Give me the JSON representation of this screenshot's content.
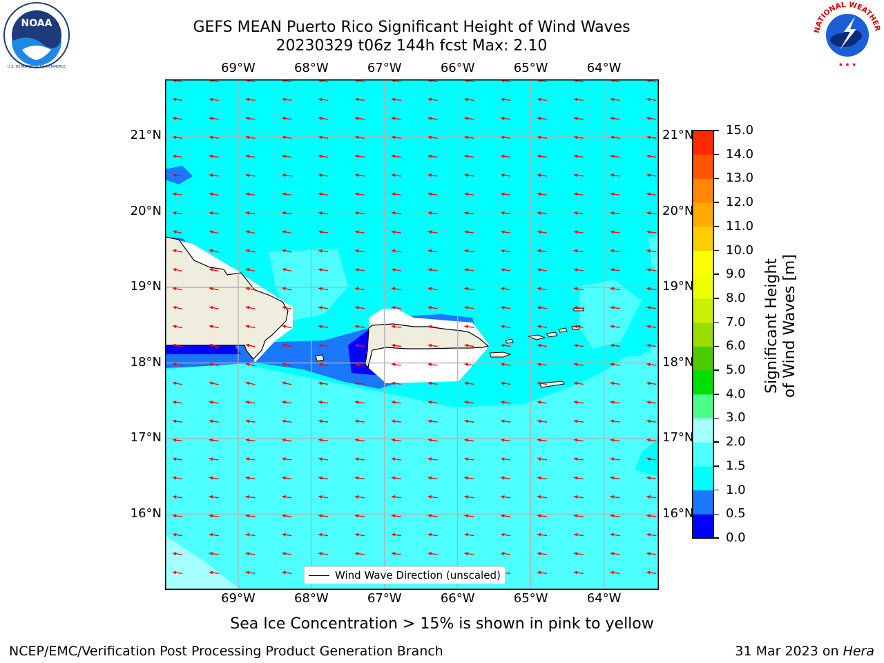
{
  "title_line1": "GEFS MEAN Puerto Rico Significant Height of Wind Waves",
  "title_line2": "20230329 t06z 144h fcst   Max: 2.10",
  "map": {
    "lon_ticks": [
      "69°W",
      "68°W",
      "67°W",
      "66°W",
      "65°W",
      "64°W"
    ],
    "lat_ticks": [
      "21°N",
      "20°N",
      "19°N",
      "18°N",
      "17°N",
      "16°N"
    ],
    "lon_values": [
      -69,
      -68,
      -67,
      -66,
      -65,
      -64
    ],
    "lat_values": [
      21,
      20,
      19,
      18,
      17,
      16
    ],
    "extent": {
      "lon_min": -70.0,
      "lon_max": -63.25,
      "lat_min": 15.0,
      "lat_max": 21.75
    },
    "arrow_color": "#ff0000",
    "legend_label": "Wind Wave Direction (unscaled)",
    "land_color": "#efedde",
    "islands": [
      "Hispaniola (east)",
      "Puerto Rico",
      "Virgin Islands",
      "St. Croix"
    ]
  },
  "colorbar": {
    "label": "Significant Height of Wind Waves [m]",
    "ticks": [
      "15.0",
      "14.0",
      "13.0",
      "12.0",
      "11.0",
      "10.0",
      "9.0",
      "8.0",
      "7.0",
      "6.0",
      "5.0",
      "4.0",
      "3.0",
      "2.0",
      "1.5",
      "1.0",
      "0.5",
      "0.0"
    ],
    "levels": [
      0.0,
      0.5,
      1.0,
      1.5,
      2.0,
      3.0,
      4.0,
      5.0,
      6.0,
      7.0,
      8.0,
      9.0,
      10.0,
      11.0,
      12.0,
      13.0,
      14.0,
      15.0
    ],
    "colors": [
      "#0000ff",
      "#1a78ff",
      "#00ffff",
      "#4dffff",
      "#a6ffff",
      "#4dff8a",
      "#00e000",
      "#4ccc00",
      "#99dd00",
      "#ccee00",
      "#eeff00",
      "#ffff00",
      "#ffcc00",
      "#ffaa00",
      "#ff8800",
      "#ff5500",
      "#ff2a00",
      "#ff0000"
    ]
  },
  "subtitle": "Sea Ice Concentration > 15% is shown in pink to yellow",
  "footer_left": "NCEP/EMC/Verification Post Processing Product Generation Branch",
  "footer_date": "31 Mar 2023 on ",
  "footer_host": "Hera",
  "logos": {
    "left": "NOAA",
    "left_ring": "NATIONAL OCEANIC AND ATMOSPHERIC ADMINISTRATION",
    "right_ring": "NATIONAL WEATHER SERVICE"
  }
}
